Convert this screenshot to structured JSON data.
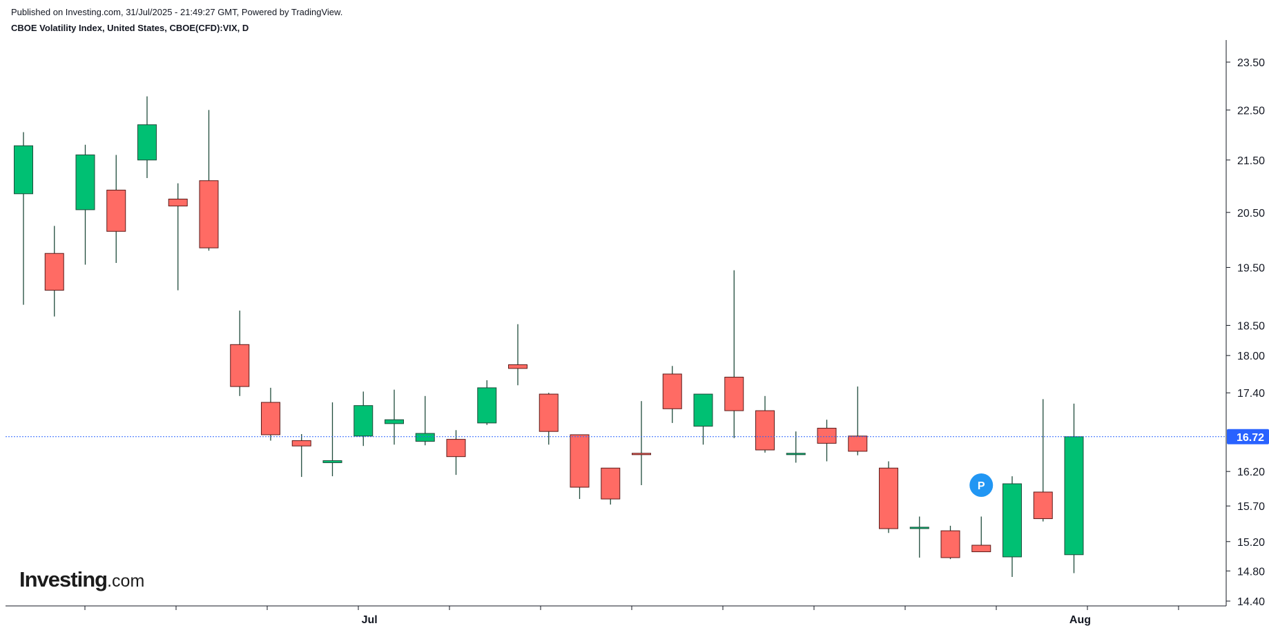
{
  "header": {
    "published": "Published on Investing.com, 31/Jul/2025 - 21:49:27 GMT, Powered by TradingView.",
    "instrument": "CBOE Volatility Index, United States, CBOE(CFD):VIX, D"
  },
  "logo": {
    "brand": "Investing",
    "suffix": ".com"
  },
  "colors": {
    "up": "#00c073",
    "down": "#ff6b64",
    "wick": "#1e4a3a",
    "axis": "#131722",
    "price_label_bg": "#2962ff",
    "marker": "#2196f3"
  },
  "chart_data": {
    "type": "candlestick",
    "y_scale": "log",
    "ylim": [
      14.4,
      23.8
    ],
    "y_ticks": [
      "23.50",
      "22.50",
      "21.50",
      "20.50",
      "19.50",
      "18.50",
      "18.00",
      "17.40",
      "16.20",
      "15.70",
      "15.20",
      "14.80",
      "14.40"
    ],
    "x_labels": [
      {
        "label": "Jul",
        "index": 11.2
      },
      {
        "label": "Aug",
        "index": 34.2
      }
    ],
    "last_price": "16.72",
    "marker": {
      "label": "P",
      "index": 31,
      "value": 16.0
    },
    "candles": [
      {
        "o": 20.85,
        "h": 22.05,
        "l": 18.85,
        "c": 21.78
      },
      {
        "o": 19.75,
        "h": 20.25,
        "l": 18.65,
        "c": 19.1
      },
      {
        "o": 20.55,
        "h": 21.8,
        "l": 19.55,
        "c": 21.6
      },
      {
        "o": 20.92,
        "h": 21.6,
        "l": 19.58,
        "c": 20.15
      },
      {
        "o": 21.5,
        "h": 22.78,
        "l": 21.15,
        "c": 22.2
      },
      {
        "o": 20.75,
        "h": 21.05,
        "l": 19.1,
        "c": 20.62
      },
      {
        "o": 21.1,
        "h": 22.5,
        "l": 19.8,
        "c": 19.85
      },
      {
        "o": 18.18,
        "h": 18.75,
        "l": 17.35,
        "c": 17.5
      },
      {
        "o": 17.25,
        "h": 17.48,
        "l": 16.66,
        "c": 16.75
      },
      {
        "o": 16.66,
        "h": 16.76,
        "l": 16.12,
        "c": 16.58
      },
      {
        "o": 16.33,
        "h": 17.25,
        "l": 16.13,
        "c": 16.36
      },
      {
        "o": 16.73,
        "h": 17.42,
        "l": 16.58,
        "c": 17.2
      },
      {
        "o": 16.92,
        "h": 17.45,
        "l": 16.6,
        "c": 16.98
      },
      {
        "o": 16.65,
        "h": 17.35,
        "l": 16.59,
        "c": 16.77
      },
      {
        "o": 16.68,
        "h": 16.82,
        "l": 16.15,
        "c": 16.42
      },
      {
        "o": 16.93,
        "h": 17.6,
        "l": 16.9,
        "c": 17.48
      },
      {
        "o": 17.85,
        "h": 18.52,
        "l": 17.52,
        "c": 17.79
      },
      {
        "o": 17.38,
        "h": 17.4,
        "l": 16.6,
        "c": 16.8
      },
      {
        "o": 16.75,
        "h": 16.75,
        "l": 15.8,
        "c": 15.97
      },
      {
        "o": 16.25,
        "h": 16.25,
        "l": 15.72,
        "c": 15.8
      },
      {
        "o": 16.47,
        "h": 17.27,
        "l": 16.0,
        "c": 16.45
      },
      {
        "o": 17.7,
        "h": 17.83,
        "l": 16.93,
        "c": 17.15
      },
      {
        "o": 16.88,
        "h": 17.38,
        "l": 16.6,
        "c": 17.38
      },
      {
        "o": 17.65,
        "h": 19.45,
        "l": 16.7,
        "c": 17.12
      },
      {
        "o": 17.12,
        "h": 17.35,
        "l": 16.48,
        "c": 16.52
      },
      {
        "o": 16.47,
        "h": 16.8,
        "l": 16.33,
        "c": 16.47
      },
      {
        "o": 16.85,
        "h": 16.98,
        "l": 16.35,
        "c": 16.62
      },
      {
        "o": 16.73,
        "h": 17.5,
        "l": 16.44,
        "c": 16.5
      },
      {
        "o": 16.25,
        "h": 16.35,
        "l": 15.32,
        "c": 15.38
      },
      {
        "o": 15.4,
        "h": 15.55,
        "l": 14.98,
        "c": 15.4
      },
      {
        "o": 15.35,
        "h": 15.42,
        "l": 14.96,
        "c": 14.98
      },
      {
        "o": 15.15,
        "h": 15.55,
        "l": 15.06,
        "c": 15.06
      },
      {
        "o": 14.99,
        "h": 16.13,
        "l": 14.72,
        "c": 16.02
      },
      {
        "o": 15.9,
        "h": 17.3,
        "l": 15.48,
        "c": 15.52
      },
      {
        "o": 15.02,
        "h": 17.23,
        "l": 14.77,
        "c": 16.72
      }
    ]
  }
}
